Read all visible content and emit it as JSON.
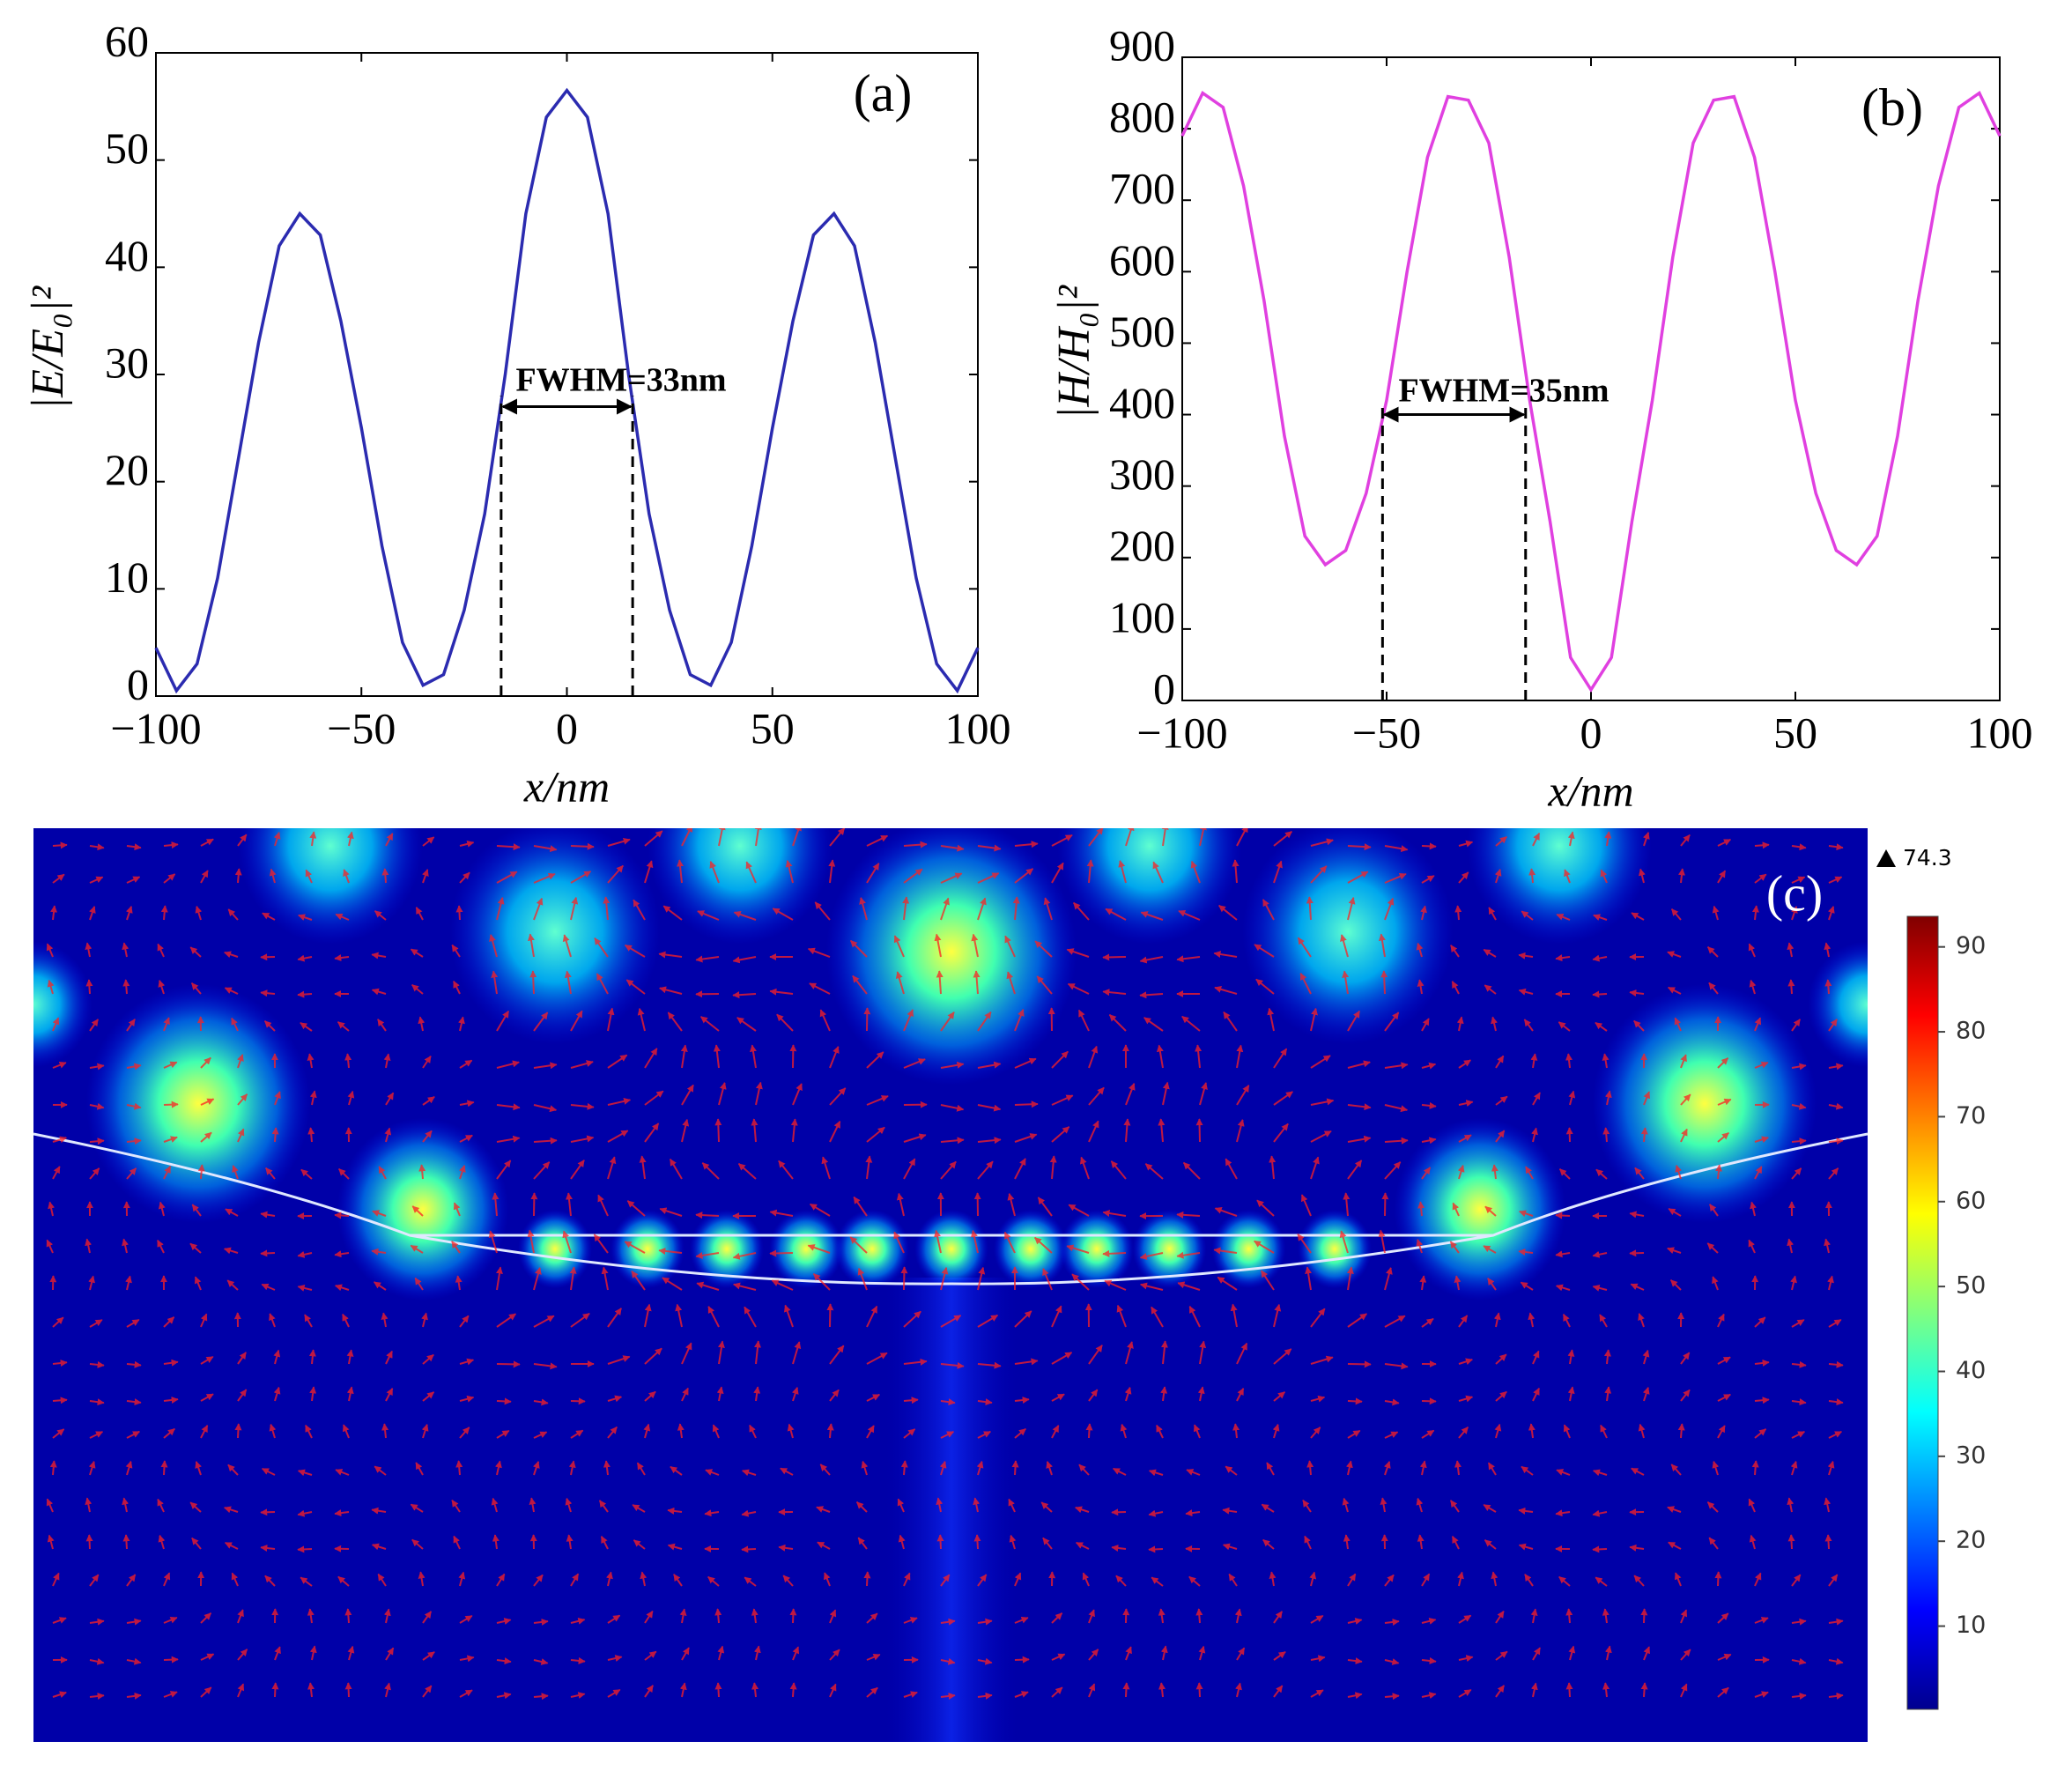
{
  "chart_data": [
    {
      "type": "line",
      "title": "(a)",
      "xlabel": "x/nm",
      "ylabel": "|E/E₀|²",
      "x": [
        -100,
        -95,
        -90,
        -85,
        -80,
        -75,
        -70,
        -65,
        -60,
        -55,
        -50,
        -45,
        -40,
        -35,
        -30,
        -25,
        -20,
        -15,
        -10,
        -5,
        0,
        5,
        10,
        15,
        20,
        25,
        30,
        35,
        40,
        45,
        50,
        55,
        60,
        65,
        70,
        75,
        80,
        85,
        90,
        95,
        100
      ],
      "values": [
        4.5,
        0.5,
        3,
        11,
        22,
        33,
        42,
        45,
        43,
        35,
        25,
        14,
        5,
        1,
        2,
        8,
        17,
        30,
        45,
        54,
        56.5,
        54,
        45,
        30,
        17,
        8,
        2,
        1,
        5,
        14,
        25,
        35,
        43,
        45,
        42,
        33,
        22,
        11,
        3,
        0.5,
        4.5
      ],
      "color": "#2b2bb0",
      "xlim": [
        -100,
        100
      ],
      "xticks": [
        {
          "value": -100,
          "label": "−100"
        },
        {
          "value": -50,
          "label": "−50"
        },
        0,
        50,
        100
      ],
      "ylim": [
        0,
        60
      ],
      "yticks": [
        0,
        10,
        20,
        30,
        40,
        50,
        60
      ],
      "annotation": "FWHM=33nm",
      "fwhm_lines": [
        -16,
        16
      ],
      "fwhm_level": 27
    },
    {
      "type": "line",
      "title": "(b)",
      "xlabel": "x/nm",
      "ylabel": "|H/H₀|²",
      "x": [
        -100,
        -95,
        -90,
        -85,
        -80,
        -75,
        -70,
        -65,
        -60,
        -55,
        -50,
        -45,
        -40,
        -35,
        -30,
        -25,
        -20,
        -15,
        -10,
        -5,
        0,
        5,
        10,
        15,
        20,
        25,
        30,
        35,
        40,
        45,
        50,
        55,
        60,
        65,
        70,
        75,
        80,
        85,
        90,
        95,
        100
      ],
      "values": [
        790,
        850,
        830,
        720,
        560,
        370,
        230,
        190,
        210,
        290,
        420,
        600,
        760,
        845,
        840,
        780,
        620,
        420,
        250,
        60,
        15,
        60,
        250,
        420,
        620,
        780,
        840,
        845,
        760,
        600,
        420,
        290,
        210,
        190,
        230,
        370,
        560,
        720,
        830,
        850,
        790
      ],
      "color": "#e040e0",
      "xlim": [
        -100,
        100
      ],
      "xticks": [
        {
          "value": -100,
          "label": "−100"
        },
        {
          "value": -50,
          "label": "−50"
        },
        0,
        50,
        100
      ],
      "ylim": [
        0,
        900
      ],
      "yticks": [
        0,
        100,
        200,
        300,
        400,
        500,
        600,
        700,
        800,
        900
      ],
      "annotation": "FWHM=35nm",
      "fwhm_lines": [
        -51,
        -16
      ],
      "fwhm_level": 400
    },
    {
      "type": "heatmap",
      "title": "(c)",
      "max_value": 74.3,
      "colormap": "jet",
      "clim": [
        0.2,
        93.6
      ],
      "cticks": [
        10,
        20,
        30,
        40,
        50,
        60,
        70,
        80,
        90
      ]
    }
  ]
}
